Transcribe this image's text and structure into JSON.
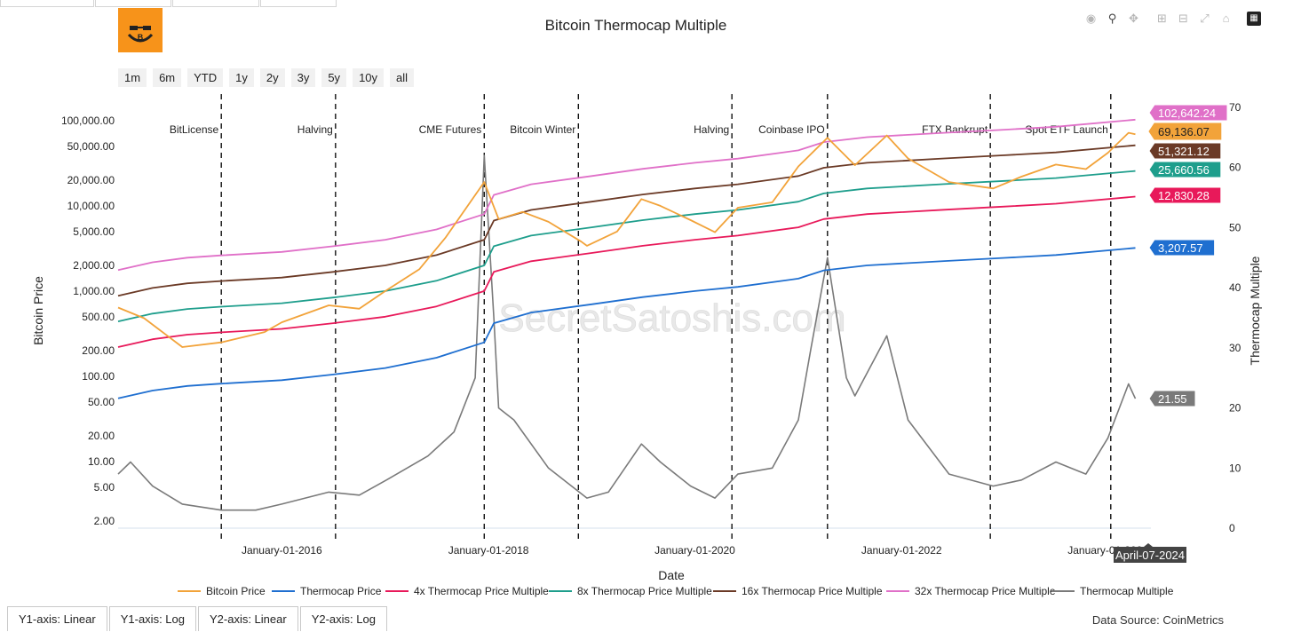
{
  "title": "Bitcoin Thermocap Multiple",
  "range_buttons": [
    "1m",
    "6m",
    "YTD",
    "1y",
    "2y",
    "3y",
    "5y",
    "10y",
    "all"
  ],
  "modebar_icons": [
    "camera-icon",
    "zoom-icon",
    "pan-icon",
    "zoom-in-icon",
    "zoom-out-icon",
    "autoscale-icon",
    "home-icon",
    "plotly-logo-icon"
  ],
  "axis_toggle_tabs": [
    "Y1-axis: Linear",
    "Y1-axis: Log",
    "Y2-axis: Linear",
    "Y2-axis: Log"
  ],
  "data_source": "Data Source: CoinMetrics",
  "watermark": "SecretSatoshis.com",
  "hover_date": "April-07-2024",
  "colors": {
    "bitcoin_price": "#f2a33a",
    "thermocap_price": "#1f6fd0",
    "x4": "#e8195a",
    "x8": "#1e9e8c",
    "x16": "#6b3a26",
    "x32": "#e070c8",
    "thermocap_multiple": "#7a7a7a"
  },
  "chart_data": {
    "type": "line",
    "title": "Bitcoin Thermocap Multiple",
    "xlabel": "Date",
    "ylabel": "Bitcoin Price",
    "y2label": "Thermocap Multiple",
    "y_scale": "log",
    "ylim": [
      2,
      150000
    ],
    "y2lim": [
      0,
      70
    ],
    "xlim": [
      "2014-06-01",
      "2024-06-01"
    ],
    "x_ticks": [
      {
        "date": "2016-01-01",
        "label": "January-01-2016"
      },
      {
        "date": "2018-01-01",
        "label": "January-01-2018"
      },
      {
        "date": "2020-01-01",
        "label": "January-01-2020"
      },
      {
        "date": "2022-01-01",
        "label": "January-01-2022"
      },
      {
        "date": "2024-01-01",
        "label": "January-01-2024"
      }
    ],
    "y_ticks": [
      "2.00",
      "5.00",
      "10.00",
      "20.00",
      "50.00",
      "100.00",
      "200.00",
      "500.00",
      "1,000.00",
      "2,000.00",
      "5,000.00",
      "10,000.00",
      "20,000.00",
      "50,000.00",
      "100,000.00"
    ],
    "y_tick_values": [
      2,
      5,
      10,
      20,
      50,
      100,
      200,
      500,
      1000,
      2000,
      5000,
      10000,
      20000,
      50000,
      100000
    ],
    "y2_ticks": [
      0,
      10,
      20,
      30,
      40,
      50,
      60,
      70
    ],
    "events": [
      {
        "date": "2015-06-01",
        "label": "BitLicense"
      },
      {
        "date": "2016-07-09",
        "label": "Halving"
      },
      {
        "date": "2017-12-17",
        "label": "CME Futures"
      },
      {
        "date": "2018-11-15",
        "label": "Bitcoin Winter"
      },
      {
        "date": "2020-05-11",
        "label": "Halving"
      },
      {
        "date": "2021-04-14",
        "label": "Coinbase IPO"
      },
      {
        "date": "2022-11-11",
        "label": "FTX Bankrupt"
      },
      {
        "date": "2024-01-11",
        "label": "Spot ETF Launch"
      }
    ],
    "end_labels": [
      {
        "series": "32x Thermocap Price Multiple",
        "value": "102,642.24"
      },
      {
        "series": "Bitcoin Price",
        "value": "69,136.07"
      },
      {
        "series": "16x Thermocap Price Multiple",
        "value": "51,321.12"
      },
      {
        "series": "8x Thermocap Price Multiple",
        "value": "25,660.56"
      },
      {
        "series": "4x Thermocap Price Multiple",
        "value": "12,830.28"
      },
      {
        "series": "Thermocap Price",
        "value": "3,207.57"
      },
      {
        "series": "Thermocap Multiple",
        "value": "21.55"
      }
    ],
    "series": [
      {
        "name": "Bitcoin Price",
        "axis": "y",
        "color_key": "bitcoin_price",
        "x": [
          "2014-06-01",
          "2014-09-01",
          "2015-01-14",
          "2015-06-01",
          "2015-11-01",
          "2016-01-01",
          "2016-06-15",
          "2016-10-01",
          "2017-01-01",
          "2017-05-01",
          "2017-08-01",
          "2017-12-17",
          "2018-02-06",
          "2018-05-01",
          "2018-08-01",
          "2018-11-25",
          "2018-12-15",
          "2019-04-01",
          "2019-06-26",
          "2019-09-01",
          "2019-12-17",
          "2020-03-12",
          "2020-06-01",
          "2020-10-01",
          "2021-01-01",
          "2021-04-14",
          "2021-07-20",
          "2021-11-10",
          "2022-01-24",
          "2022-06-18",
          "2022-11-21",
          "2023-03-01",
          "2023-07-01",
          "2023-10-15",
          "2024-01-01",
          "2024-03-14",
          "2024-04-07"
        ],
        "y": [
          640,
          480,
          220,
          250,
          330,
          430,
          680,
          620,
          1000,
          1800,
          4200,
          19000,
          7000,
          8500,
          6500,
          3800,
          3400,
          5000,
          12000,
          10000,
          6800,
          4900,
          9500,
          11000,
          29000,
          63000,
          30000,
          67000,
          36000,
          19000,
          16000,
          22000,
          30500,
          27000,
          42000,
          72000,
          69136.07
        ]
      },
      {
        "name": "Thermocap Price",
        "axis": "y",
        "color_key": "thermocap_price",
        "x": [
          "2014-06-01",
          "2014-10-01",
          "2015-02-01",
          "2015-06-01",
          "2016-01-01",
          "2016-07-01",
          "2017-01-01",
          "2017-07-01",
          "2017-12-17",
          "2018-01-20",
          "2018-06-01",
          "2019-01-01",
          "2019-07-01",
          "2020-01-01",
          "2020-06-01",
          "2021-01-01",
          "2021-04-01",
          "2021-09-01",
          "2022-06-01",
          "2023-01-01",
          "2023-07-01",
          "2024-04-07"
        ],
        "y": [
          55,
          68,
          77,
          82,
          90,
          105,
          125,
          165,
          250,
          420,
          560,
          700,
          850,
          1000,
          1120,
          1400,
          1750,
          2000,
          2250,
          2450,
          2650,
          3207.57
        ]
      },
      {
        "name": "4x Thermocap Price Multiple",
        "axis": "y",
        "color_key": "x4",
        "x": [
          "2014-06-01",
          "2014-10-01",
          "2015-02-01",
          "2015-06-01",
          "2016-01-01",
          "2016-07-01",
          "2017-01-01",
          "2017-07-01",
          "2017-12-17",
          "2018-01-20",
          "2018-06-01",
          "2019-01-01",
          "2019-07-01",
          "2020-01-01",
          "2020-06-01",
          "2021-01-01",
          "2021-04-01",
          "2021-09-01",
          "2022-06-01",
          "2023-01-01",
          "2023-07-01",
          "2024-04-07"
        ],
        "y": [
          220,
          272,
          308,
          328,
          360,
          420,
          500,
          660,
          1000,
          1680,
          2240,
          2800,
          3400,
          4000,
          4480,
          5600,
          7000,
          8000,
          9000,
          9800,
          10600,
          12830.28
        ]
      },
      {
        "name": "8x Thermocap Price Multiple",
        "axis": "y",
        "color_key": "x8",
        "x": [
          "2014-06-01",
          "2014-10-01",
          "2015-02-01",
          "2015-06-01",
          "2016-01-01",
          "2016-07-01",
          "2017-01-01",
          "2017-07-01",
          "2017-12-17",
          "2018-01-20",
          "2018-06-01",
          "2019-01-01",
          "2019-07-01",
          "2020-01-01",
          "2020-06-01",
          "2021-01-01",
          "2021-04-01",
          "2021-09-01",
          "2022-06-01",
          "2023-01-01",
          "2023-07-01",
          "2024-04-07"
        ],
        "y": [
          440,
          544,
          616,
          656,
          720,
          840,
          1000,
          1320,
          2000,
          3360,
          4480,
          5600,
          6800,
          8000,
          8960,
          11200,
          14000,
          16000,
          18000,
          19600,
          21200,
          25660.56
        ]
      },
      {
        "name": "16x Thermocap Price Multiple",
        "axis": "y",
        "color_key": "x16",
        "x": [
          "2014-06-01",
          "2014-10-01",
          "2015-02-01",
          "2015-06-01",
          "2016-01-01",
          "2016-07-01",
          "2017-01-01",
          "2017-07-01",
          "2017-12-17",
          "2018-01-20",
          "2018-06-01",
          "2019-01-01",
          "2019-07-01",
          "2020-01-01",
          "2020-06-01",
          "2021-01-01",
          "2021-04-01",
          "2021-09-01",
          "2022-06-01",
          "2023-01-01",
          "2023-07-01",
          "2024-04-07"
        ],
        "y": [
          880,
          1088,
          1232,
          1312,
          1440,
          1680,
          2000,
          2640,
          4000,
          6720,
          8960,
          11200,
          13600,
          16000,
          17920,
          22400,
          28000,
          32000,
          36000,
          39200,
          42400,
          51321.12
        ]
      },
      {
        "name": "32x Thermocap Price Multiple",
        "axis": "y",
        "color_key": "x32",
        "x": [
          "2014-06-01",
          "2014-10-01",
          "2015-02-01",
          "2015-06-01",
          "2016-01-01",
          "2016-07-01",
          "2017-01-01",
          "2017-07-01",
          "2017-12-17",
          "2018-01-20",
          "2018-06-01",
          "2019-01-01",
          "2019-07-01",
          "2020-01-01",
          "2020-06-01",
          "2021-01-01",
          "2021-04-01",
          "2021-09-01",
          "2022-06-01",
          "2023-01-01",
          "2023-07-01",
          "2024-04-07"
        ],
        "y": [
          1760,
          2176,
          2464,
          2624,
          2880,
          3360,
          4000,
          5280,
          8000,
          13440,
          17920,
          22400,
          27200,
          32000,
          35840,
          44800,
          56000,
          64000,
          72000,
          78400,
          84800,
          102642.24
        ]
      },
      {
        "name": "Thermocap Multiple",
        "axis": "y2",
        "color_key": "thermocap_multiple",
        "x": [
          "2014-06-01",
          "2014-07-15",
          "2014-10-01",
          "2015-01-14",
          "2015-06-01",
          "2015-10-01",
          "2016-01-01",
          "2016-06-15",
          "2016-10-01",
          "2017-01-05",
          "2017-06-01",
          "2017-09-01",
          "2017-11-15",
          "2017-12-17",
          "2018-01-20",
          "2018-02-06",
          "2018-04-01",
          "2018-08-01",
          "2018-12-15",
          "2019-03-01",
          "2019-06-26",
          "2019-09-01",
          "2019-12-17",
          "2020-03-12",
          "2020-06-01",
          "2020-10-01",
          "2021-01-01",
          "2021-02-15",
          "2021-04-14",
          "2021-06-20",
          "2021-07-20",
          "2021-11-10",
          "2022-01-24",
          "2022-06-18",
          "2022-11-21",
          "2023-03-01",
          "2023-07-01",
          "2023-10-15",
          "2024-01-01",
          "2024-03-14",
          "2024-04-07"
        ],
        "y": [
          9,
          11,
          7,
          4,
          3,
          3,
          4,
          6,
          5.5,
          8,
          12,
          16,
          25,
          62,
          35,
          20,
          18,
          10,
          5,
          6,
          14,
          11,
          7,
          5,
          9,
          10,
          18,
          30,
          45,
          25,
          22,
          32,
          18,
          9,
          7,
          8,
          11,
          9,
          15,
          24,
          21.55
        ]
      }
    ]
  }
}
